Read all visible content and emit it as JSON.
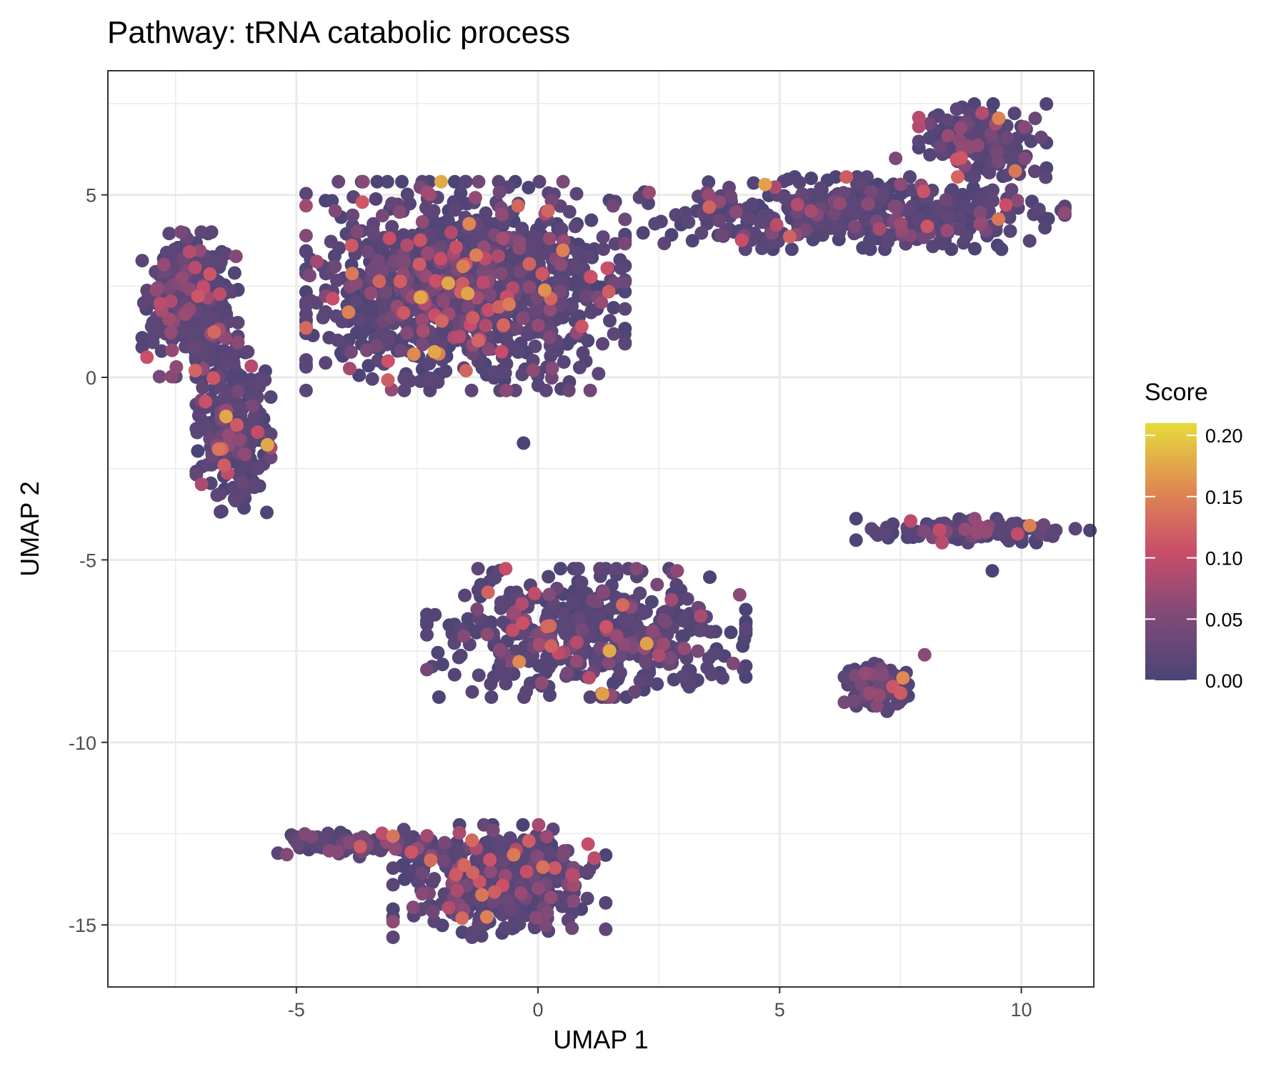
{
  "chart_data": {
    "type": "scatter",
    "title": "Pathway: tRNA catabolic process",
    "xlabel": "UMAP 1",
    "ylabel": "UMAP 2",
    "xlim": [
      -8.9,
      11.5
    ],
    "ylim": [
      -16.7,
      8.4
    ],
    "xticks": [
      -5,
      0,
      5,
      10
    ],
    "yticks": [
      5,
      0,
      -5,
      -10,
      -15
    ],
    "xtick_labels": [
      "-5",
      "0",
      "5",
      "10"
    ],
    "ytick_labels": [
      "5",
      "0",
      "-5",
      "-10",
      "-15"
    ],
    "grid": true,
    "color_scale": {
      "title": "Score",
      "min": 0.0,
      "max": 0.21,
      "ticks": [
        "0.00",
        "0.05",
        "0.10",
        "0.15",
        "0.20"
      ],
      "tick_values": [
        0.0,
        0.05,
        0.1,
        0.15,
        0.2
      ],
      "colors": [
        "#4a4476",
        "#7f4a78",
        "#c94d6a",
        "#e08b52",
        "#e6dc3a"
      ]
    },
    "clusters": [
      {
        "label": "main upper cluster",
        "center": [
          -1.5,
          2.5
        ],
        "spread": [
          1.5,
          1.3
        ],
        "count": 1200
      },
      {
        "label": "left arm",
        "center": [
          -7.2,
          2.0
        ],
        "spread": [
          0.45,
          0.9
        ],
        "count": 350
      },
      {
        "label": "left stem",
        "center": [
          -6.3,
          -1.5
        ],
        "spread": [
          0.35,
          1.0
        ],
        "count": 260
      },
      {
        "label": "right arm",
        "center": [
          6.5,
          4.5
        ],
        "spread": [
          2.0,
          0.45
        ],
        "count": 420
      },
      {
        "label": "right tip",
        "center": [
          9.2,
          6.5
        ],
        "spread": [
          0.6,
          0.45
        ],
        "count": 160
      },
      {
        "label": "middle cluster",
        "center": [
          1.0,
          -7.0
        ],
        "spread": [
          1.5,
          0.8
        ],
        "count": 480
      },
      {
        "label": "small right cluster",
        "center": [
          7.0,
          -8.5
        ],
        "spread": [
          0.3,
          0.3
        ],
        "count": 110
      },
      {
        "label": "right streak",
        "center": [
          9.0,
          -4.2
        ],
        "spread": [
          1.1,
          0.15
        ],
        "count": 110
      },
      {
        "label": "bottom cluster",
        "center": [
          -0.8,
          -13.8
        ],
        "spread": [
          1.0,
          0.7
        ],
        "count": 380
      },
      {
        "label": "bottom tail",
        "center": [
          -3.4,
          -12.8
        ],
        "spread": [
          0.9,
          0.15
        ],
        "count": 110
      }
    ],
    "outliers": [
      {
        "x": -5.8,
        "y": -1.5,
        "score": 0.1
      },
      {
        "x": -0.3,
        "y": -1.8,
        "score": 0.0
      },
      {
        "x": 9.4,
        "y": -5.3,
        "score": 0.0
      },
      {
        "x": 8.0,
        "y": -7.6,
        "score": 0.06
      },
      {
        "x": 7.4,
        "y": 6.0,
        "score": 0.05
      }
    ]
  }
}
